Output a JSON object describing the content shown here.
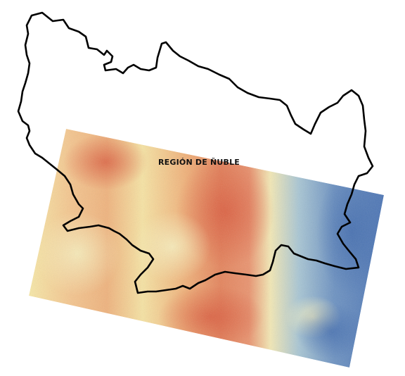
{
  "map": {
    "region_label": "REGIÓN DE ÑUBLE",
    "colors": {
      "background": "#ffffff",
      "boundary_stroke": "#000000",
      "raster_low": "#4a74b4",
      "raster_mid_low": "#9fc0d6",
      "raster_mid": "#f7eeb1",
      "raster_mid_high": "#f2b07a",
      "raster_high": "#d65a3c"
    },
    "layers": [
      {
        "name": "raster-scene",
        "description_type": "satellite raster (temperature/index gradient)"
      },
      {
        "name": "region-boundary",
        "description_type": "administrative boundary outline"
      }
    ]
  }
}
